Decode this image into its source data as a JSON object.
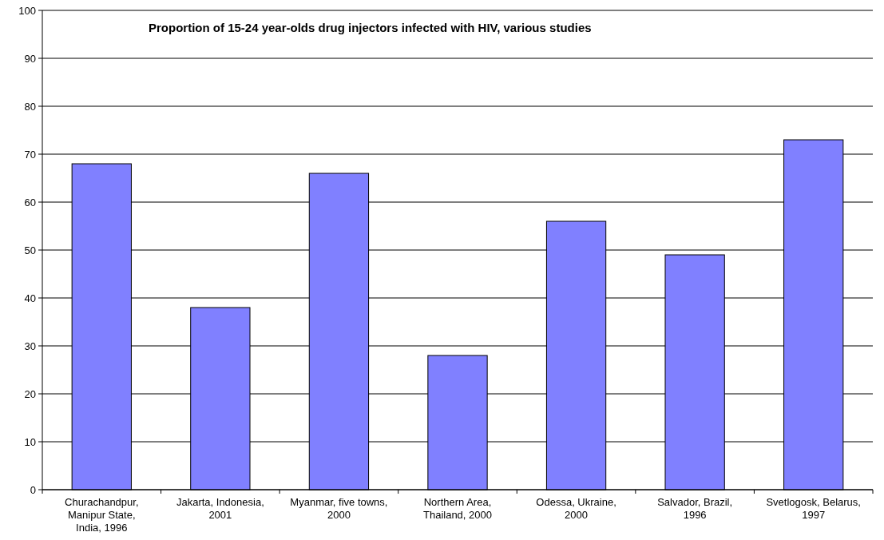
{
  "chart_data": {
    "type": "bar",
    "title": "Proportion of 15-24 year-olds drug injectors infected with HIV, various studies",
    "categories": [
      "Churachandpur, Manipur State, India, 1996",
      "Jakarta, Indonesia, 2001",
      "Myanmar, five towns, 2000",
      "Northern Area, Thailand, 2000",
      "Odessa, Ukraine, 2000",
      "Salvador, Brazil, 1996",
      "Svetlogosk, Belarus, 1997"
    ],
    "values": [
      68,
      38,
      66,
      28,
      56,
      49,
      73
    ],
    "color": "#8080ff",
    "ylim": [
      0,
      100
    ],
    "yticks": [
      0,
      10,
      20,
      30,
      40,
      50,
      60,
      70,
      80,
      90,
      100
    ],
    "grid": "y"
  }
}
